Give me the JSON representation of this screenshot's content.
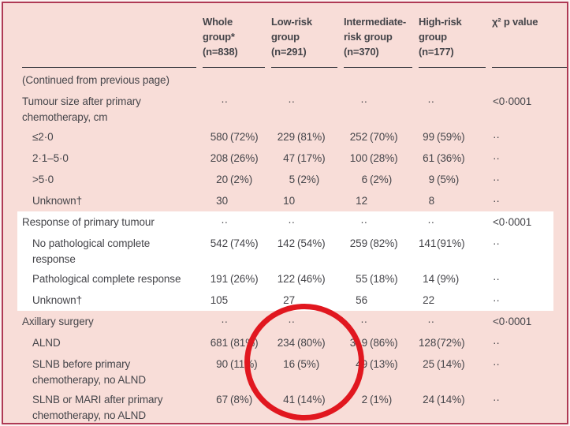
{
  "colors": {
    "page_background": "#f8ddd8",
    "frame_border": "#af3a55",
    "highlight_band": "#ffffff",
    "annotation_circle": "#e1171f",
    "text": "#45454a",
    "header_rule": "#3d3d42"
  },
  "annotation": {
    "shape": "red-ellipse over low-risk group axillary surgery values"
  },
  "table": {
    "columns": [
      {
        "label": ""
      },
      {
        "label": "Whole\ngroup*\n(n=838)"
      },
      {
        "label": "Low-risk\ngroup\n(n=291)"
      },
      {
        "label": "Intermediate-\nrisk group\n(n=370)"
      },
      {
        "label": "High-risk\ngroup\n(n=177)"
      },
      {
        "label": "χ² p value"
      }
    ],
    "rows": [
      {
        "label": "(Continued from previous page)",
        "indent": 0,
        "cells": [
          {
            "n": "",
            "p": ""
          },
          {
            "n": "",
            "p": ""
          },
          {
            "n": "",
            "p": ""
          },
          {
            "n": "",
            "p": ""
          }
        ],
        "p_value": ""
      },
      {
        "label": "Tumour size after primary\nchemotherapy, cm",
        "indent": 0,
        "cells": [
          {
            "n": "··",
            "p": ""
          },
          {
            "n": "··",
            "p": ""
          },
          {
            "n": "··",
            "p": ""
          },
          {
            "n": "··",
            "p": ""
          }
        ],
        "p_value": "<0·0001"
      },
      {
        "label": "≤2·0",
        "indent": 1,
        "cells": [
          {
            "n": "580",
            "p": "(72%)"
          },
          {
            "n": "229",
            "p": "(81%)"
          },
          {
            "n": "252",
            "p": "(70%)"
          },
          {
            "n": "99",
            "p": "(59%)"
          }
        ],
        "p_value": "··"
      },
      {
        "label": "2·1–5·0",
        "indent": 1,
        "cells": [
          {
            "n": "208",
            "p": "(26%)"
          },
          {
            "n": "47",
            "p": "(17%)"
          },
          {
            "n": "100",
            "p": "(28%)"
          },
          {
            "n": "61",
            "p": "(36%)"
          }
        ],
        "p_value": "··"
      },
      {
        "label": ">5·0",
        "indent": 1,
        "cells": [
          {
            "n": "20",
            "p": "(2%)"
          },
          {
            "n": "5",
            "p": "(2%)"
          },
          {
            "n": "6",
            "p": "(2%)"
          },
          {
            "n": "9",
            "p": "(5%)"
          }
        ],
        "p_value": "··"
      },
      {
        "label": "Unknown†",
        "indent": 1,
        "cells": [
          {
            "n": "30",
            "p": ""
          },
          {
            "n": "10",
            "p": ""
          },
          {
            "n": "12",
            "p": ""
          },
          {
            "n": "8",
            "p": ""
          }
        ],
        "p_value": "··"
      },
      {
        "label": "Response of primary tumour",
        "indent": 0,
        "cells": [
          {
            "n": "··",
            "p": ""
          },
          {
            "n": "··",
            "p": ""
          },
          {
            "n": "··",
            "p": ""
          },
          {
            "n": "··",
            "p": ""
          }
        ],
        "p_value": "<0·0001"
      },
      {
        "label": "No pathological complete\nresponse",
        "indent": 1,
        "cells": [
          {
            "n": "542",
            "p": "(74%)"
          },
          {
            "n": "142",
            "p": "(54%)"
          },
          {
            "n": "259",
            "p": "(82%)"
          },
          {
            "n": "141",
            "p": "(91%)"
          }
        ],
        "p_value": "··"
      },
      {
        "label": "Pathological complete response",
        "indent": 1,
        "cells": [
          {
            "n": "191",
            "p": "(26%)"
          },
          {
            "n": "122",
            "p": "(46%)"
          },
          {
            "n": "55",
            "p": "(18%)"
          },
          {
            "n": "14",
            "p": "(9%)"
          }
        ],
        "p_value": "··"
      },
      {
        "label": "Unknown†",
        "indent": 1,
        "cells": [
          {
            "n": "105",
            "p": ""
          },
          {
            "n": "27",
            "p": ""
          },
          {
            "n": "56",
            "p": ""
          },
          {
            "n": "22",
            "p": ""
          }
        ],
        "p_value": "··"
      },
      {
        "label": "Axillary surgery",
        "indent": 0,
        "cells": [
          {
            "n": "··",
            "p": ""
          },
          {
            "n": "··",
            "p": ""
          },
          {
            "n": "··",
            "p": ""
          },
          {
            "n": "··",
            "p": ""
          }
        ],
        "p_value": "<0·0001"
      },
      {
        "label": "ALND",
        "indent": 1,
        "cells": [
          {
            "n": "681",
            "p": "(81%)"
          },
          {
            "n": "234",
            "p": "(80%)"
          },
          {
            "n": "319",
            "p": "(86%)"
          },
          {
            "n": "128",
            "p": "(72%)"
          }
        ],
        "p_value": "··"
      },
      {
        "label": "SLNB before primary\nchemotherapy, no ALND",
        "indent": 1,
        "cells": [
          {
            "n": "90",
            "p": "(11%)"
          },
          {
            "n": "16",
            "p": "(5%)"
          },
          {
            "n": "49",
            "p": "(13%)"
          },
          {
            "n": "25",
            "p": "(14%)"
          }
        ],
        "p_value": "··"
      },
      {
        "label": "SLNB or MARI after primary\nchemotherapy, no ALND",
        "indent": 1,
        "cells": [
          {
            "n": "67",
            "p": "(8%)"
          },
          {
            "n": "41",
            "p": "(14%)"
          },
          {
            "n": "2",
            "p": "(1%)"
          },
          {
            "n": "24",
            "p": "(14%)"
          }
        ],
        "p_value": "··"
      }
    ]
  }
}
